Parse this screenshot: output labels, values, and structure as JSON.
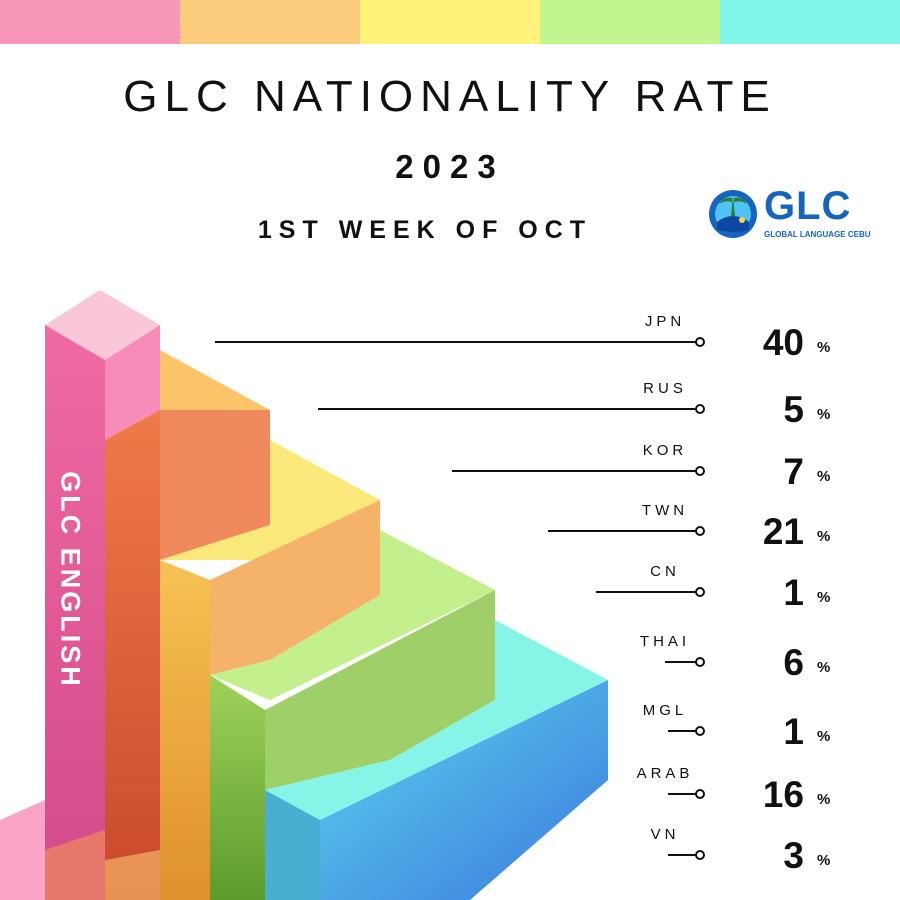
{
  "header": {
    "title": "GLC NATIONALITY RATE",
    "year": "2023",
    "subtitle": "1ST WEEK OF OCT"
  },
  "logo": {
    "text": "GLC",
    "subtext": "GLOBAL LANGUAGE CEBU"
  },
  "side_label": "GLC ENGLISH",
  "top_colors": [
    "#f796b8",
    "#fbcb7c",
    "#fdf27a",
    "#c3f58f",
    "#7ff6e8"
  ],
  "chart_data": {
    "type": "bar",
    "unit": "%",
    "categories": [
      "JPN",
      "RUS",
      "KOR",
      "TWN",
      "CN",
      "THAI",
      "MGL",
      "ARAB",
      "VN"
    ],
    "values": [
      40,
      5,
      7,
      21,
      1,
      6,
      1,
      16,
      3
    ]
  }
}
